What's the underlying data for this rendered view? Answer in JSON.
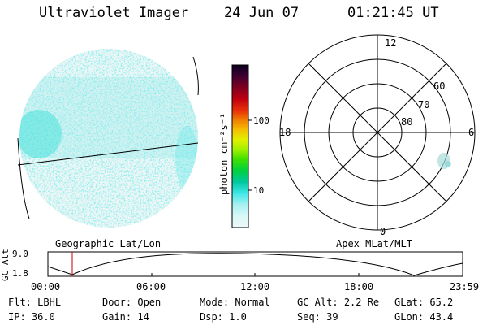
{
  "header": {
    "instrument": "Ultraviolet Imager",
    "date": "24 Jun 07",
    "time": "01:21:45 UT"
  },
  "colorbar": {
    "unit_label": "photon cm⁻²s⁻¹",
    "ticks": [
      "100",
      "10"
    ],
    "colors": [
      "#0b0020",
      "#3a0030",
      "#6a0028",
      "#990018",
      "#c80010",
      "#e83008",
      "#f07000",
      "#f4a000",
      "#f0d000",
      "#d8f000",
      "#a0f000",
      "#40e000",
      "#00d020",
      "#00c890",
      "#40e8e8",
      "#a8f0f0",
      "#d8f8f8",
      "#eef8f8"
    ]
  },
  "globe": {
    "haze_color": "#40e0e0",
    "light_color": "#cce8e8"
  },
  "polar": {
    "lat_labels": [
      "60",
      "70",
      "80"
    ],
    "mlt_labels": {
      "top": "12",
      "left": "18",
      "right": "6",
      "bottom": "0"
    }
  },
  "timeline": {
    "left_label": "Geographic Lat/Lon",
    "right_label": "Apex MLat/MLT",
    "y_title": "GC Alt",
    "y_ticks": [
      "9.0",
      "1.8"
    ],
    "x_ticks": [
      "00:00",
      "06:00",
      "12:00",
      "18:00",
      "23:59"
    ],
    "marker_color": "#cc0000"
  },
  "status": {
    "row1": [
      {
        "label": "Flt:",
        "value": "LBHL"
      },
      {
        "label": "Door:",
        "value": "Open"
      },
      {
        "label": "Mode:",
        "value": "Normal"
      },
      {
        "label": "GC Alt:",
        "value": "2.2 Re"
      },
      {
        "label": "GLat:",
        "value": "65.2"
      }
    ],
    "row2": [
      {
        "label": "IP:",
        "value": "36.0"
      },
      {
        "label": "Gain:",
        "value": "14"
      },
      {
        "label": "Dsp:",
        "value": "1.0"
      },
      {
        "label": "Seq:",
        "value": "39"
      },
      {
        "label": "GLon:",
        "value": "43.4"
      }
    ]
  }
}
